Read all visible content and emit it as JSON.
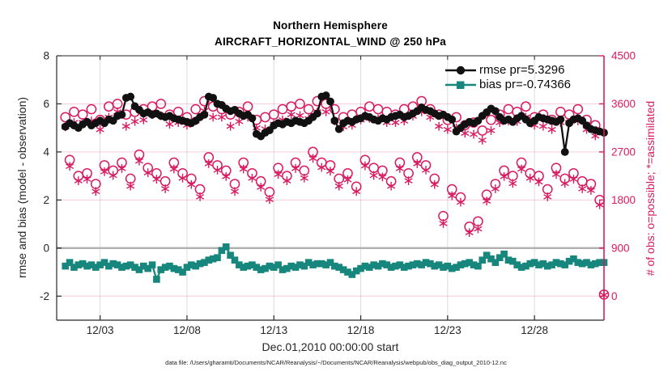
{
  "header": {
    "title_line1": "Northern Hemisphere",
    "title_line2": "AIRCRAFT_HORIZONTAL_WIND @ 250 hPa"
  },
  "footer": {
    "data_file": "data file: /Users/gharamti/Documents/NCAR/Reanalysis/~/Documents/NCAR/Reanalysis/webpub/obs_diag_output_2010-12.nc"
  },
  "colors": {
    "rmse": "#111111",
    "bias": "#17877D",
    "obs": "#D81B60",
    "grid_vertical": "#DCDCDC",
    "grid_horizontal": "rgba(216,27,96,0.22)",
    "zero_line": "#AFAFAF",
    "spine": "#262626"
  },
  "chart_data": {
    "type": "line",
    "title": "Northern Hemisphere",
    "subtitle": "AIRCRAFT_HORIZONTAL_WIND @ 250 hPa",
    "xlabel": "Dec.01,2010 00:00:00 start",
    "ylabel_left": "rmse and bias (model - observation)",
    "ylabel_right": "# of obs: o=possible; *=assimilated",
    "time_start": "Dec.01,2010 00:00:00",
    "time_step_hours": 6,
    "xlim_days": [
      -0.5,
      31
    ],
    "ylim_left": [
      -3,
      8
    ],
    "ylim_right": [
      -450,
      4500
    ],
    "x_tick_days": [
      2,
      7,
      12,
      17,
      22,
      27
    ],
    "x_tick_labels": [
      "12/03",
      "12/08",
      "12/13",
      "12/18",
      "12/23",
      "12/28"
    ],
    "left_ticks": [
      8,
      6,
      4,
      2,
      0,
      -2
    ],
    "right_ticks": [
      4500,
      3600,
      2700,
      1800,
      900,
      0
    ],
    "grid": true,
    "legend_position": "top-right-inside",
    "legend": [
      {
        "label": "rmse pr=5.3296",
        "color": "#111111",
        "marker": "circle"
      },
      {
        "label": "bias pr=-0.74366",
        "color": "#17877D",
        "marker": "square"
      }
    ],
    "series": [
      {
        "name": "rmse",
        "axis": "left",
        "color": "#111111",
        "marker": "filled-circle",
        "values": [
          5.05,
          5.2,
          5.1,
          5.0,
          5.15,
          5.25,
          5.1,
          5.2,
          5.3,
          5.2,
          5.35,
          5.3,
          5.5,
          5.55,
          6.25,
          6.3,
          5.9,
          5.75,
          5.6,
          5.65,
          5.55,
          5.6,
          5.5,
          5.45,
          5.5,
          5.4,
          5.35,
          5.3,
          5.25,
          5.2,
          5.3,
          5.45,
          5.55,
          6.3,
          6.25,
          6.0,
          5.95,
          5.8,
          5.7,
          5.75,
          5.6,
          5.5,
          5.55,
          5.4,
          4.75,
          4.65,
          4.8,
          4.9,
          5.1,
          5.2,
          5.15,
          5.25,
          5.2,
          5.3,
          5.25,
          5.2,
          5.3,
          5.45,
          5.6,
          6.3,
          6.35,
          6.1,
          5.3,
          4.95,
          5.2,
          5.3,
          5.25,
          5.35,
          5.4,
          5.5,
          5.45,
          5.35,
          5.3,
          5.4,
          5.35,
          5.45,
          5.5,
          5.55,
          5.45,
          5.5,
          5.6,
          5.7,
          5.85,
          5.75,
          5.7,
          5.6,
          5.5,
          5.55,
          5.45,
          5.35,
          4.85,
          5.0,
          5.15,
          5.25,
          5.2,
          5.3,
          5.5,
          5.65,
          5.8,
          5.7,
          5.45,
          5.3,
          5.35,
          5.25,
          5.4,
          5.5,
          5.35,
          5.2,
          5.3,
          5.45,
          5.4,
          5.35,
          5.3,
          5.25,
          5.35,
          4.0,
          5.2,
          5.35,
          5.4,
          5.3,
          5.1,
          4.95,
          4.9,
          4.85,
          4.8
        ]
      },
      {
        "name": "bias",
        "axis": "left",
        "color": "#17877D",
        "marker": "filled-square",
        "values": [
          -0.75,
          -0.6,
          -0.8,
          -0.7,
          -0.65,
          -0.75,
          -0.7,
          -0.8,
          -0.7,
          -0.6,
          -0.75,
          -0.65,
          -0.7,
          -0.8,
          -0.75,
          -0.7,
          -0.8,
          -0.9,
          -0.75,
          -0.85,
          -0.7,
          -1.3,
          -0.9,
          -0.8,
          -0.75,
          -0.85,
          -0.9,
          -1.0,
          -0.8,
          -0.7,
          -0.75,
          -0.65,
          -0.6,
          -0.5,
          -0.45,
          -0.4,
          -0.1,
          0.05,
          -0.3,
          -0.5,
          -0.7,
          -0.8,
          -0.75,
          -0.7,
          -0.8,
          -0.9,
          -0.85,
          -0.75,
          -0.8,
          -0.7,
          -0.9,
          -0.85,
          -0.75,
          -0.8,
          -0.7,
          -0.75,
          -0.6,
          -0.7,
          -0.65,
          -0.65,
          -0.7,
          -0.6,
          -0.75,
          -0.8,
          -0.9,
          -1.0,
          -1.1,
          -0.95,
          -0.85,
          -0.75,
          -0.8,
          -0.7,
          -0.75,
          -0.65,
          -0.7,
          -0.8,
          -0.75,
          -0.7,
          -0.8,
          -0.75,
          -0.7,
          -0.65,
          -0.7,
          -0.6,
          -0.65,
          -0.75,
          -0.7,
          -0.8,
          -0.75,
          -0.85,
          -0.8,
          -0.7,
          -0.65,
          -0.6,
          -0.7,
          -0.75,
          -0.5,
          -0.3,
          -0.45,
          -0.6,
          -0.4,
          -0.25,
          -0.5,
          -0.55,
          -0.7,
          -0.8,
          -0.75,
          -0.65,
          -0.6,
          -0.7,
          -0.65,
          -0.75,
          -0.7,
          -0.6,
          -0.65,
          -0.7,
          -0.55,
          -0.45,
          -0.6,
          -0.65,
          -0.6,
          -0.7,
          -0.65,
          -0.6,
          -0.6
        ]
      },
      {
        "name": "possible",
        "axis": "right",
        "color": "#D81B60",
        "marker": "open-circle",
        "values": [
          3350,
          2550,
          3450,
          2250,
          3400,
          2300,
          3500,
          2100,
          3300,
          2450,
          3550,
          2350,
          3600,
          2500,
          3400,
          2200,
          3450,
          2650,
          3500,
          2400,
          3550,
          2300,
          3600,
          2150,
          3400,
          2500,
          3450,
          2300,
          3350,
          2200,
          3500,
          2000,
          3650,
          2600,
          3550,
          2450,
          3500,
          2350,
          3400,
          2100,
          3450,
          2500,
          3550,
          2300,
          3300,
          2150,
          3350,
          1950,
          3400,
          2400,
          3500,
          2250,
          3550,
          2500,
          3600,
          2350,
          3500,
          2700,
          3650,
          2500,
          3600,
          2450,
          3500,
          2200,
          3350,
          2300,
          3400,
          2050,
          3450,
          2550,
          3550,
          2400,
          3500,
          2350,
          3450,
          2150,
          3400,
          2500,
          3500,
          2300,
          3550,
          2600,
          3650,
          2450,
          3500,
          2200,
          3400,
          1500,
          3300,
          2000,
          3350,
          1850,
          3200,
          1300,
          3250,
          1400,
          3100,
          1900,
          3300,
          2100,
          3400,
          2350,
          3500,
          2250,
          3450,
          2500,
          3550,
          2300,
          3350,
          2250,
          3400,
          2000,
          3300,
          2400,
          3450,
          2200,
          3400,
          2300,
          3500,
          2150,
          3300,
          2100,
          3200,
          1800,
          30
        ]
      },
      {
        "name": "assimilated",
        "axis": "right",
        "color": "#D81B60",
        "marker": "asterisk",
        "values": [
          3170,
          2430,
          3250,
          2160,
          3250,
          2190,
          3280,
          1960,
          3120,
          2330,
          3350,
          2260,
          3450,
          2390,
          3180,
          2060,
          3270,
          2530,
          3300,
          2310,
          3400,
          2190,
          3380,
          2010,
          3220,
          2380,
          3250,
          2210,
          3200,
          2090,
          3280,
          1860,
          3470,
          2480,
          3350,
          2360,
          3350,
          2240,
          3180,
          1960,
          3270,
          2380,
          3350,
          2210,
          3150,
          2040,
          3130,
          1810,
          3220,
          2280,
          3300,
          2160,
          3400,
          2390,
          3380,
          2210,
          3320,
          2580,
          3450,
          2410,
          3450,
          2340,
          3280,
          2060,
          3170,
          2180,
          3200,
          1960,
          3300,
          2440,
          3330,
          2260,
          3320,
          2230,
          3250,
          2060,
          3250,
          2390,
          3280,
          2160,
          3370,
          2480,
          3450,
          2360,
          3350,
          2090,
          3180,
          1360,
          3120,
          1880,
          3150,
          1760,
          3050,
          1190,
          3030,
          1260,
          2920,
          1780,
          3100,
          2010,
          3250,
          2240,
          3280,
          2110,
          3270,
          2380,
          3350,
          2210,
          3200,
          2140,
          3180,
          1860,
          3120,
          2280,
          3250,
          2110,
          3250,
          2190,
          3280,
          2010,
          3120,
          1980,
          3000,
          1710,
          20
        ]
      }
    ]
  }
}
